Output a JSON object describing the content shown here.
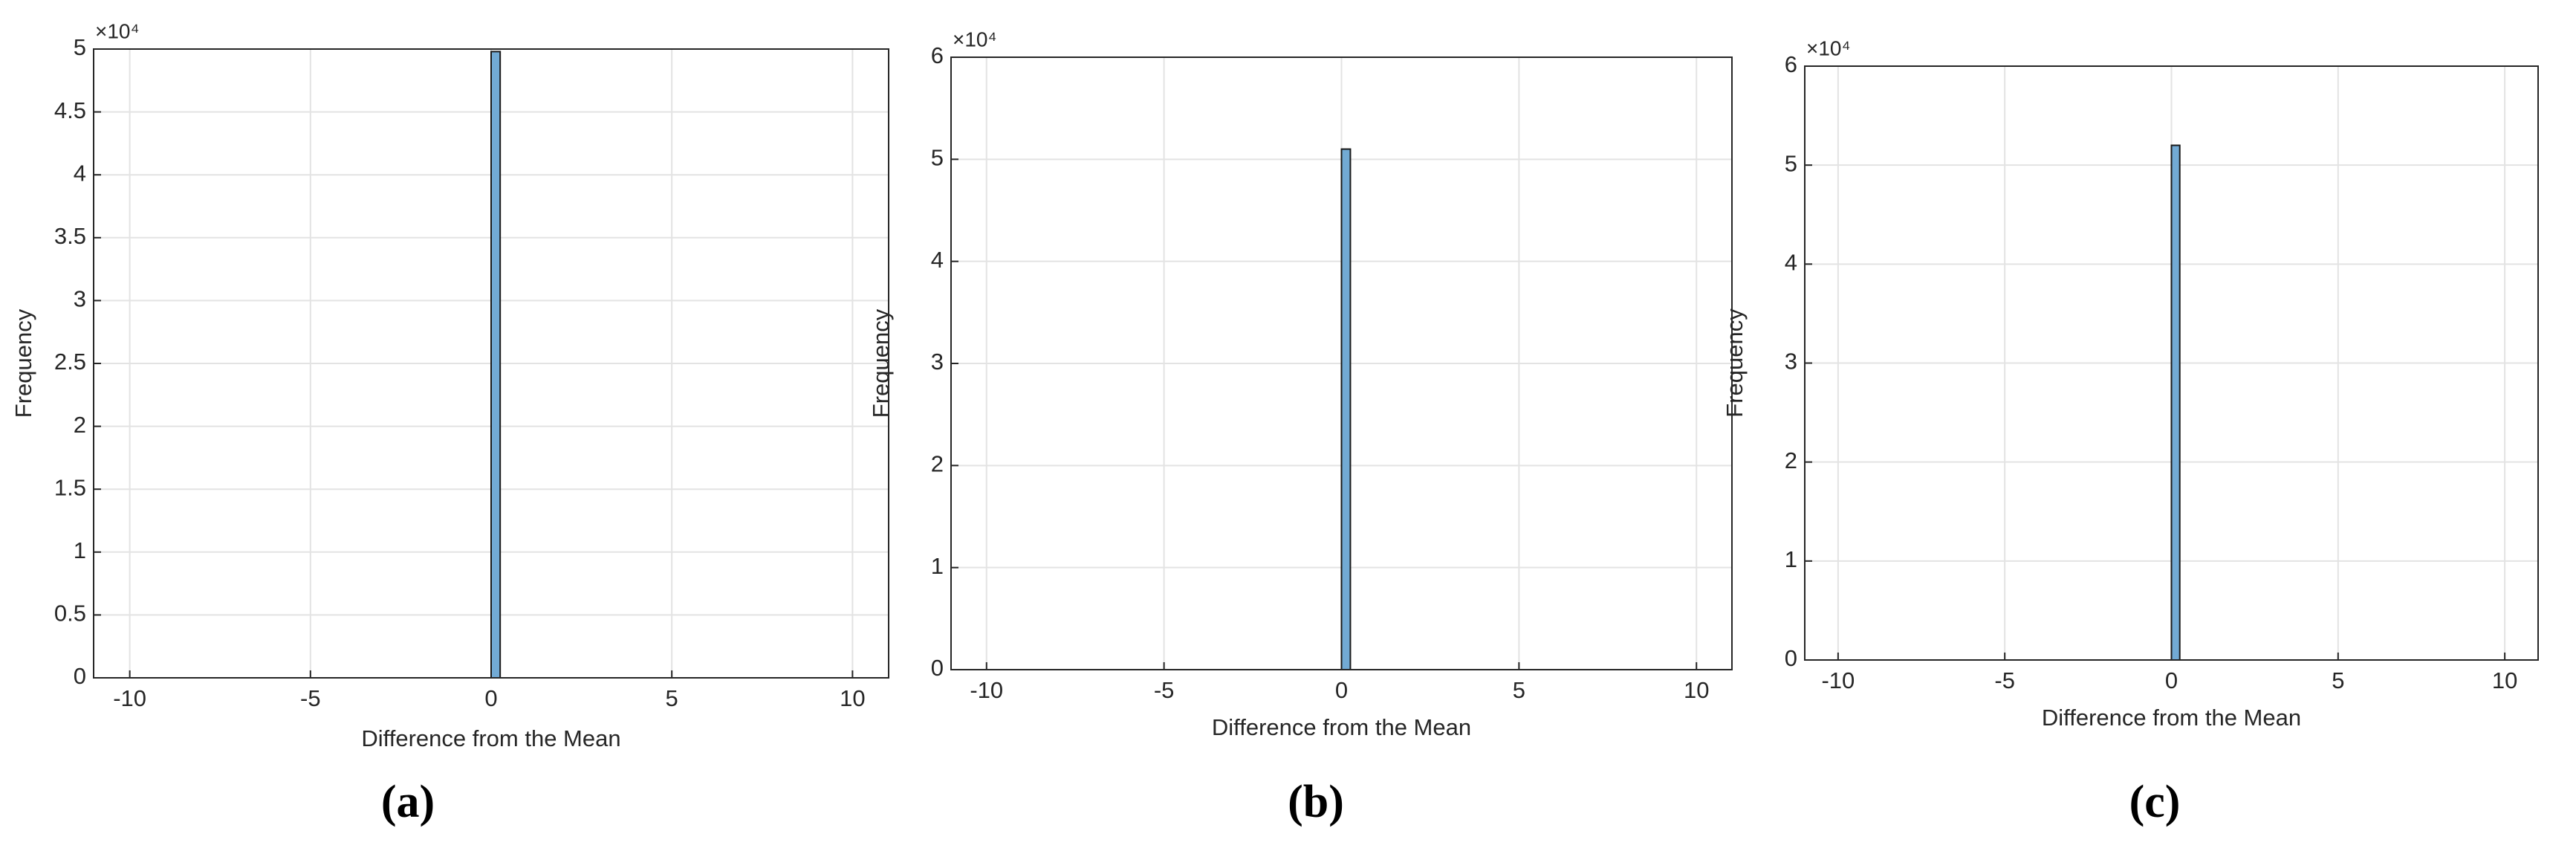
{
  "chart_data": [
    {
      "type": "histogram",
      "caption": "(a)",
      "x_label": "Difference from the Mean",
      "y_label": "Frequency",
      "exponent_label": "×10⁴",
      "bins": [
        0,
        0.25
      ],
      "values": [
        4.98
      ],
      "color": "#72aad4",
      "xlim": [
        -11,
        11
      ],
      "xticks": [
        -10,
        -5,
        0,
        5,
        10
      ],
      "ylim": [
        0,
        5
      ],
      "yticks": [
        0,
        0.5,
        1,
        1.5,
        2,
        2.5,
        3,
        3.5,
        4,
        4.5,
        5
      ],
      "grid": true
    },
    {
      "type": "histogram",
      "caption": "(b)",
      "x_label": "Difference from the Mean",
      "y_label": "Frequency",
      "exponent_label": "×10⁴",
      "bins": [
        0,
        0.25
      ],
      "values": [
        5.1
      ],
      "color": "#72aad4",
      "xlim": [
        -11,
        11
      ],
      "xticks": [
        -10,
        -5,
        0,
        5,
        10
      ],
      "ylim": [
        0,
        6
      ],
      "yticks": [
        0,
        1,
        2,
        3,
        4,
        5,
        6
      ],
      "grid": true
    },
    {
      "type": "histogram",
      "caption": "(c)",
      "x_label": "Difference from the Mean",
      "y_label": "Frequency",
      "exponent_label": "×10⁴",
      "bins": [
        0,
        0.25
      ],
      "values": [
        5.2
      ],
      "color": "#72aad4",
      "xlim": [
        -11,
        11
      ],
      "xticks": [
        -10,
        -5,
        0,
        5,
        10
      ],
      "ylim": [
        0,
        6
      ],
      "yticks": [
        0,
        1,
        2,
        3,
        4,
        5,
        6
      ],
      "grid": true
    }
  ]
}
